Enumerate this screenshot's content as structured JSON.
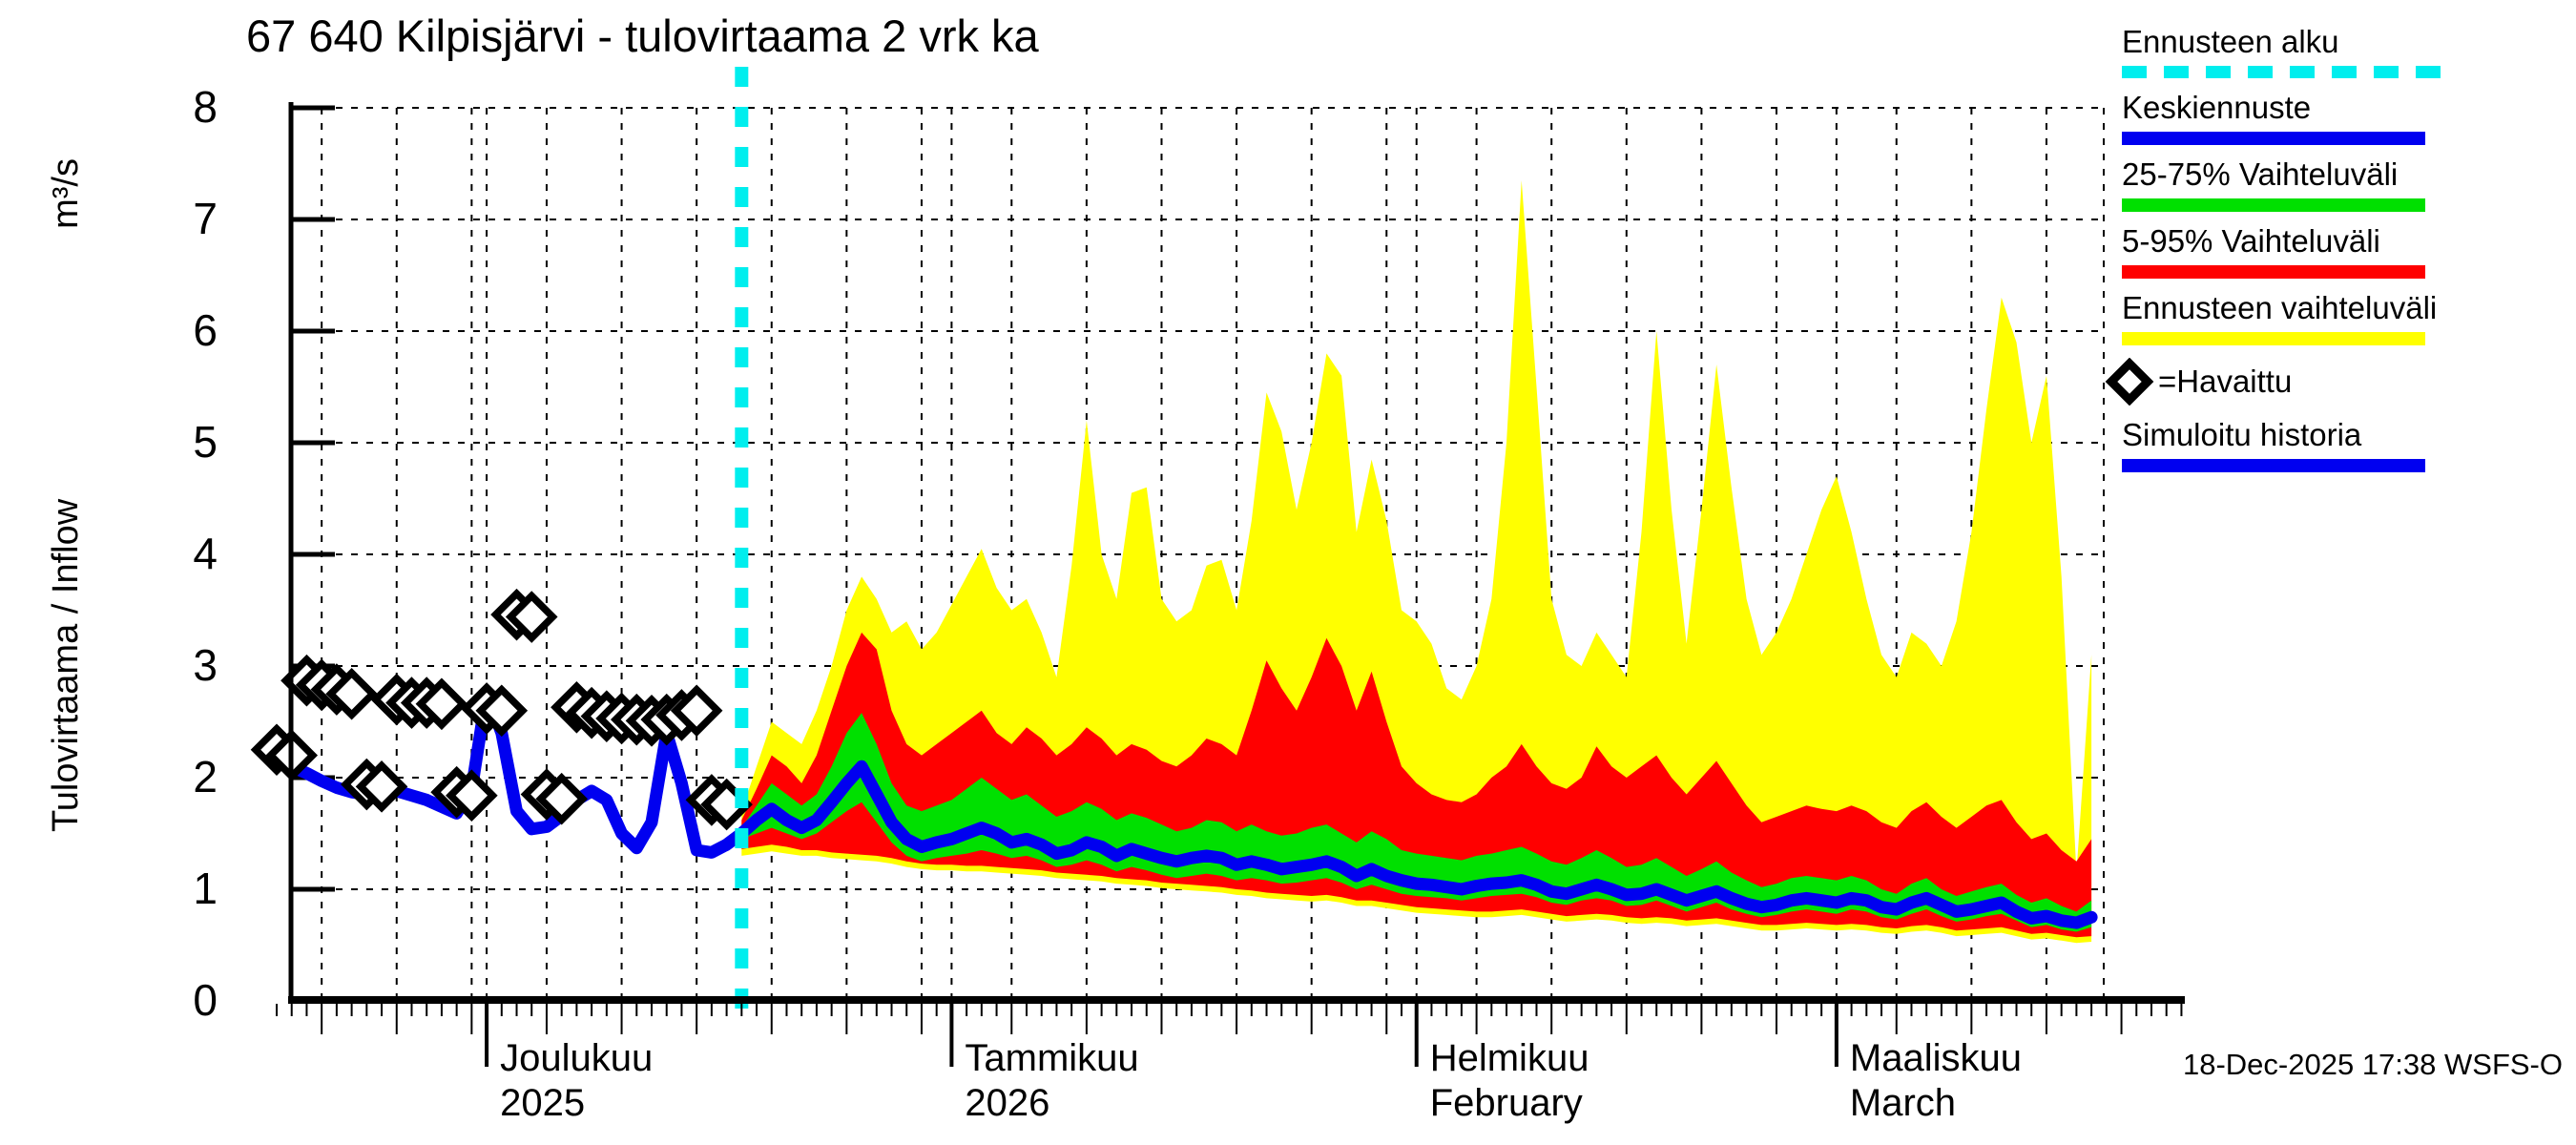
{
  "title": "67 640 Kilpisjärvi - tulovirtaama 2 vrk ka",
  "timestamp": "18-Dec-2025 17:38 WSFS-O",
  "y_axis": {
    "label": "Tulovirtaama / Inflow",
    "unit": "m³/s"
  },
  "legend": {
    "forecast_start": "Ennusteen alku",
    "median": "Keskiennuste",
    "band_25_75": "25-75% Vaihteluväli",
    "band_5_95": "5-95% Vaihteluväli",
    "band_minmax": "Ennusteen vaihteluväli",
    "observed": "=Havaittu",
    "history": "Simuloitu historia"
  },
  "colors": {
    "cyan": "#00eeee",
    "blue": "#0000f0",
    "green": "#00e000",
    "red": "#ff0000",
    "yellow": "#ffff00",
    "black": "#000000"
  },
  "chart_data": {
    "type": "area",
    "title": "67 640 Kilpisjärvi - tulovirtaama 2 vrk ka",
    "ylabel": "Tulovirtaama / Inflow m³/s",
    "ylim": [
      0,
      8
    ],
    "y_ticks": [
      0,
      1,
      2,
      3,
      4,
      5,
      6,
      7,
      8
    ],
    "grid": "dashed",
    "legend_position": "right-outside",
    "start_date": "2025-11-17",
    "total_days": 122,
    "forecast_start_day": 31,
    "forecast_start_date": "2025-12-18",
    "months_calendar": [
      {
        "start": -16,
        "len": 30
      },
      {
        "start": 14,
        "len": 31
      },
      {
        "start": 45,
        "len": 31
      },
      {
        "start": 76,
        "len": 28
      },
      {
        "start": 104,
        "len": 31
      }
    ],
    "month_labels": [
      {
        "label": "Joulukuu",
        "sub": "2025",
        "start_day": 14
      },
      {
        "label": "Tammikuu",
        "sub": "2026",
        "start_day": 45
      },
      {
        "label": "Helmikuu",
        "sub": "February",
        "start_day": 76
      },
      {
        "label": "Maaliskuu",
        "sub": "March",
        "start_day": 104
      }
    ],
    "observed_days_start": 0,
    "observed": [
      2.25,
      2.2,
      2.87,
      2.83,
      2.79,
      2.75,
      1.94,
      1.92,
      2.7,
      2.67,
      2.67,
      2.66,
      1.87,
      1.84,
      2.62,
      2.6,
      3.46,
      3.44,
      1.85,
      1.81,
      2.63,
      2.58,
      2.55,
      2.53,
      2.52,
      2.51,
      2.52,
      2.56,
      2.6,
      1.8,
      1.76
    ],
    "history": [
      2.2,
      2.1,
      2.04,
      1.97,
      1.91,
      1.87,
      1.85,
      1.87,
      1.88,
      1.84,
      1.8,
      1.74,
      1.68,
      1.9,
      2.76,
      2.4,
      1.7,
      1.54,
      1.56,
      1.66,
      1.8,
      1.88,
      1.8,
      1.5,
      1.37,
      1.6,
      2.4,
      1.95,
      1.35,
      1.33,
      1.4,
      1.5
    ],
    "forecast": {
      "yellow_top": [
        1.7,
        2.1,
        2.5,
        2.4,
        2.3,
        2.6,
        3.0,
        3.5,
        3.8,
        3.6,
        3.3,
        3.4,
        3.15,
        3.3,
        3.55,
        3.8,
        4.05,
        3.7,
        3.5,
        3.6,
        3.3,
        2.9,
        3.9,
        5.2,
        4.0,
        3.6,
        4.55,
        4.6,
        3.6,
        3.4,
        3.5,
        3.9,
        3.95,
        3.5,
        4.3,
        5.45,
        5.1,
        4.4,
        5.0,
        5.8,
        5.6,
        4.2,
        4.85,
        4.3,
        3.5,
        3.4,
        3.2,
        2.8,
        2.7,
        3.0,
        3.6,
        5.0,
        7.35,
        5.5,
        3.6,
        3.1,
        3.0,
        3.3,
        3.1,
        2.9,
        4.2,
        6.0,
        4.4,
        3.2,
        4.4,
        5.7,
        4.6,
        3.6,
        3.1,
        3.3,
        3.6,
        4.0,
        4.4,
        4.7,
        4.2,
        3.6,
        3.1,
        2.9,
        3.3,
        3.2,
        3.0,
        3.4,
        4.2,
        5.3,
        6.3,
        5.9,
        5.0,
        5.6,
        3.8,
        1.15,
        3.1
      ],
      "red_top": [
        1.62,
        1.9,
        2.2,
        2.1,
        1.95,
        2.2,
        2.6,
        3.0,
        3.3,
        3.15,
        2.6,
        2.3,
        2.2,
        2.3,
        2.4,
        2.5,
        2.6,
        2.4,
        2.3,
        2.45,
        2.35,
        2.2,
        2.3,
        2.45,
        2.35,
        2.2,
        2.3,
        2.25,
        2.15,
        2.1,
        2.2,
        2.35,
        2.3,
        2.2,
        2.6,
        3.05,
        2.8,
        2.6,
        2.9,
        3.25,
        3.0,
        2.6,
        2.95,
        2.5,
        2.1,
        1.95,
        1.85,
        1.8,
        1.78,
        1.85,
        2.0,
        2.1,
        2.3,
        2.1,
        1.95,
        1.9,
        2.0,
        2.28,
        2.1,
        2.0,
        2.1,
        2.2,
        2.0,
        1.85,
        2.0,
        2.15,
        1.95,
        1.75,
        1.6,
        1.65,
        1.7,
        1.75,
        1.72,
        1.7,
        1.75,
        1.7,
        1.6,
        1.55,
        1.7,
        1.78,
        1.65,
        1.55,
        1.65,
        1.75,
        1.8,
        1.6,
        1.45,
        1.5,
        1.35,
        1.25,
        1.45
      ],
      "green_top": [
        1.55,
        1.75,
        1.95,
        1.85,
        1.75,
        1.85,
        2.1,
        2.4,
        2.58,
        2.3,
        1.95,
        1.75,
        1.7,
        1.75,
        1.8,
        1.9,
        2.0,
        1.9,
        1.8,
        1.85,
        1.75,
        1.65,
        1.7,
        1.78,
        1.72,
        1.62,
        1.68,
        1.64,
        1.58,
        1.52,
        1.55,
        1.62,
        1.6,
        1.52,
        1.58,
        1.52,
        1.48,
        1.5,
        1.55,
        1.58,
        1.5,
        1.42,
        1.52,
        1.45,
        1.35,
        1.32,
        1.3,
        1.28,
        1.26,
        1.3,
        1.32,
        1.35,
        1.38,
        1.32,
        1.25,
        1.22,
        1.28,
        1.35,
        1.28,
        1.2,
        1.22,
        1.28,
        1.2,
        1.12,
        1.18,
        1.25,
        1.15,
        1.08,
        1.02,
        1.05,
        1.1,
        1.12,
        1.1,
        1.08,
        1.12,
        1.08,
        1.0,
        0.96,
        1.05,
        1.1,
        1.0,
        0.94,
        0.98,
        1.02,
        1.05,
        0.95,
        0.88,
        0.92,
        0.85,
        0.8,
        0.9
      ],
      "median": [
        1.5,
        1.62,
        1.72,
        1.62,
        1.55,
        1.62,
        1.78,
        1.95,
        2.1,
        1.85,
        1.6,
        1.45,
        1.38,
        1.42,
        1.45,
        1.5,
        1.55,
        1.5,
        1.42,
        1.45,
        1.4,
        1.32,
        1.35,
        1.42,
        1.38,
        1.3,
        1.36,
        1.32,
        1.28,
        1.25,
        1.28,
        1.3,
        1.28,
        1.22,
        1.25,
        1.22,
        1.18,
        1.2,
        1.22,
        1.25,
        1.2,
        1.12,
        1.18,
        1.12,
        1.08,
        1.05,
        1.04,
        1.02,
        1.0,
        1.03,
        1.05,
        1.06,
        1.08,
        1.04,
        0.98,
        0.96,
        1.0,
        1.04,
        1.0,
        0.95,
        0.96,
        1.0,
        0.95,
        0.9,
        0.94,
        0.98,
        0.92,
        0.87,
        0.84,
        0.86,
        0.9,
        0.92,
        0.9,
        0.88,
        0.92,
        0.9,
        0.84,
        0.82,
        0.88,
        0.92,
        0.86,
        0.8,
        0.82,
        0.85,
        0.88,
        0.8,
        0.74,
        0.76,
        0.72,
        0.7,
        0.75
      ],
      "green_bot": [
        1.45,
        1.5,
        1.55,
        1.5,
        1.45,
        1.5,
        1.6,
        1.7,
        1.78,
        1.6,
        1.42,
        1.3,
        1.25,
        1.28,
        1.3,
        1.32,
        1.35,
        1.32,
        1.28,
        1.3,
        1.26,
        1.2,
        1.22,
        1.26,
        1.22,
        1.16,
        1.2,
        1.17,
        1.13,
        1.1,
        1.12,
        1.14,
        1.12,
        1.08,
        1.1,
        1.08,
        1.05,
        1.06,
        1.08,
        1.1,
        1.06,
        1.0,
        1.04,
        1.0,
        0.96,
        0.94,
        0.93,
        0.92,
        0.9,
        0.92,
        0.94,
        0.95,
        0.96,
        0.93,
        0.88,
        0.86,
        0.9,
        0.92,
        0.9,
        0.85,
        0.86,
        0.9,
        0.85,
        0.8,
        0.84,
        0.88,
        0.82,
        0.78,
        0.75,
        0.77,
        0.8,
        0.82,
        0.8,
        0.78,
        0.82,
        0.8,
        0.75,
        0.73,
        0.78,
        0.82,
        0.76,
        0.71,
        0.73,
        0.76,
        0.78,
        0.72,
        0.66,
        0.68,
        0.64,
        0.62,
        0.66
      ],
      "red_bot": [
        1.36,
        1.38,
        1.4,
        1.38,
        1.35,
        1.35,
        1.33,
        1.32,
        1.31,
        1.3,
        1.28,
        1.25,
        1.23,
        1.22,
        1.22,
        1.21,
        1.21,
        1.2,
        1.19,
        1.18,
        1.17,
        1.15,
        1.14,
        1.13,
        1.12,
        1.1,
        1.09,
        1.08,
        1.06,
        1.05,
        1.04,
        1.03,
        1.02,
        1.0,
        0.99,
        0.97,
        0.96,
        0.95,
        0.94,
        0.95,
        0.93,
        0.9,
        0.9,
        0.88,
        0.86,
        0.84,
        0.83,
        0.82,
        0.81,
        0.8,
        0.8,
        0.81,
        0.82,
        0.8,
        0.78,
        0.76,
        0.77,
        0.78,
        0.77,
        0.75,
        0.74,
        0.75,
        0.74,
        0.72,
        0.73,
        0.74,
        0.72,
        0.7,
        0.68,
        0.68,
        0.69,
        0.7,
        0.69,
        0.68,
        0.69,
        0.68,
        0.66,
        0.65,
        0.67,
        0.68,
        0.66,
        0.63,
        0.64,
        0.65,
        0.66,
        0.63,
        0.6,
        0.61,
        0.59,
        0.57,
        0.58
      ],
      "yellow_bot": [
        1.3,
        1.32,
        1.34,
        1.32,
        1.3,
        1.3,
        1.28,
        1.27,
        1.26,
        1.25,
        1.23,
        1.2,
        1.18,
        1.17,
        1.17,
        1.16,
        1.16,
        1.15,
        1.14,
        1.13,
        1.12,
        1.1,
        1.09,
        1.08,
        1.07,
        1.05,
        1.04,
        1.03,
        1.01,
        1.0,
        0.99,
        0.98,
        0.97,
        0.95,
        0.94,
        0.92,
        0.91,
        0.9,
        0.89,
        0.9,
        0.88,
        0.85,
        0.85,
        0.83,
        0.81,
        0.79,
        0.78,
        0.77,
        0.76,
        0.75,
        0.75,
        0.76,
        0.77,
        0.75,
        0.73,
        0.71,
        0.72,
        0.73,
        0.72,
        0.7,
        0.69,
        0.7,
        0.69,
        0.67,
        0.68,
        0.69,
        0.67,
        0.65,
        0.63,
        0.63,
        0.64,
        0.65,
        0.64,
        0.63,
        0.64,
        0.63,
        0.61,
        0.6,
        0.62,
        0.63,
        0.61,
        0.58,
        0.59,
        0.6,
        0.61,
        0.58,
        0.55,
        0.56,
        0.54,
        0.52,
        0.53
      ]
    }
  }
}
